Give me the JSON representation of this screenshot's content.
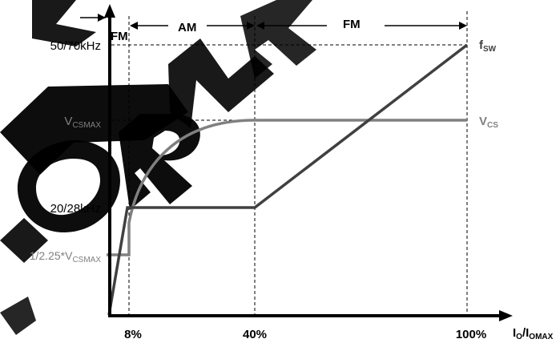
{
  "chart_data": {
    "type": "line",
    "x_ticks": [
      "8%",
      "40%",
      "100%"
    ],
    "x_label": {
      "main": "I",
      "sub1": "O",
      "mid": "/I",
      "sub2": "OMAX"
    },
    "y_ticks": {
      "fmax": "50/70kHz",
      "vcsmax": {
        "main": "V",
        "sub": "CSMAX"
      },
      "fmin": "20/28kHz",
      "vcs_low": {
        "main": "1/2.25*V",
        "sub": "CSMAX"
      }
    },
    "regions": [
      "FM",
      "AM",
      "FM"
    ],
    "series": [
      {
        "name": {
          "main": "f",
          "sub": "SW"
        },
        "color": "#404040",
        "points": [
          [
            0,
            0
          ],
          [
            3,
            "fmin"
          ],
          [
            8,
            "fmin"
          ],
          [
            40,
            "fmin"
          ],
          [
            100,
            "fmax"
          ]
        ]
      },
      {
        "name": {
          "main": "V",
          "sub": "CS"
        },
        "color": "#808080",
        "points": [
          [
            0,
            "vcs_low"
          ],
          [
            5.5,
            "vcs_low"
          ],
          [
            5.5,
            "vcs_low_step"
          ],
          [
            40,
            "vcsmax"
          ],
          [
            100,
            "vcsmax"
          ]
        ]
      }
    ],
    "watermark": "FOR NE"
  },
  "colors": {
    "fsw_line": "#404040",
    "vcs_line": "#808080",
    "axis": "#000000",
    "dashed": "#000000",
    "watermark": "#000000"
  }
}
